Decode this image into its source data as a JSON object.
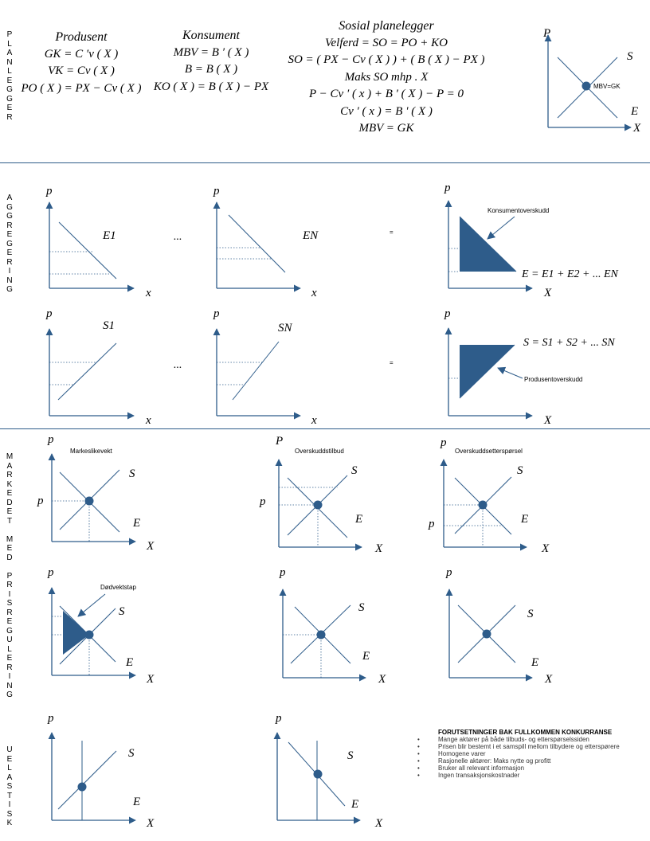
{
  "side_labels": {
    "planner": "P\nL\nA\nN\nL\nE\nG\nG\nE\nR",
    "aggregation": "A\nG\nG\nR\nE\nG\nE\nR\nI\nN\nG",
    "market_regulation": "M\nA\nR\nK\nE\nD\nE\nT\n\nM\nE\nD\n\nP\nR\nI\nS\nR\nE\nG\nU\nL\nE\nR\nI\nN\nG",
    "inelastic": "U\nE\nL\nA\nS\nT\nI\nS\nK"
  },
  "producer": {
    "title": "Produsent",
    "eq1": "GK = C ′v ( X )",
    "eq2": "VK = Cv ( X )",
    "eq3": "PO ( X ) = PX − Cv ( X )"
  },
  "consumer": {
    "title": "Konsument",
    "eq1": "MBV = B ′ ( X )",
    "eq2": "B = B ( X )",
    "eq3": "KO ( X ) = B ( X ) − PX"
  },
  "planner": {
    "title": "Sosial planelegger",
    "eq1": "Velferd = SO = PO + KO",
    "eq2": "SO = ( PX − Cv ( X ) ) + ( B ( X ) − PX )",
    "eq3": "Maks SO mhp . X",
    "eq4": "P − Cv ′ ( x ) + B ′ ( X ) − P = 0",
    "eq5": "Cv ′ ( x ) = B ′ ( X )",
    "eq6": "MBV = GK"
  },
  "planner_chart": {
    "y_axis": "P",
    "x_axis": "X",
    "supply": "S",
    "demand": "E",
    "point_label": "MBV=GK"
  },
  "aggregation": {
    "demand_1": {
      "y_axis": "p",
      "x_axis": "x",
      "curve": "E1"
    },
    "ellipsis": "...",
    "demand_n": {
      "y_axis": "p",
      "x_axis": "x",
      "curve": "EN"
    },
    "equals": "=",
    "demand_total": {
      "y_axis": "p",
      "x_axis": "X",
      "annotation": "Konsumentoverskudd",
      "formula": "E = E1 + E2 + ... EN"
    },
    "supply_1": {
      "y_axis": "p",
      "x_axis": "x",
      "curve": "S1"
    },
    "supply_n": {
      "y_axis": "p",
      "x_axis": "x",
      "curve": "SN"
    },
    "supply_total": {
      "y_axis": "p",
      "x_axis": "X",
      "annotation": "Produsentoverskudd",
      "formula": "S = S1 + S2 + ... SN"
    }
  },
  "market": {
    "equilibrium": {
      "y_axis": "p",
      "x_axis": "X",
      "title": "Markeslikevekt",
      "price_label": "p",
      "supply": "S",
      "demand": "E"
    },
    "excess_supply": {
      "y_axis": "P",
      "x_axis": "X",
      "title": "Overskuddstilbud",
      "price_label": "p",
      "supply": "S",
      "demand": "E"
    },
    "excess_demand": {
      "y_axis": "p",
      "x_axis": "X",
      "title": "Overskuddsetterspørsel",
      "price_label": "p",
      "supply": "S",
      "demand": "E"
    },
    "deadweight": {
      "y_axis": "p",
      "x_axis": "X",
      "annotation": "Dødvektstap",
      "supply": "S",
      "demand": "E"
    },
    "middle": {
      "y_axis": "p",
      "x_axis": "X",
      "supply": "S",
      "demand": "E"
    },
    "right": {
      "y_axis": "p",
      "x_axis": "X",
      "supply": "S",
      "demand": "E"
    },
    "inelastic_supply": {
      "y_axis": "p",
      "x_axis": "X",
      "supply": "S",
      "demand": "E"
    },
    "inelastic_demand": {
      "y_axis": "p",
      "x_axis": "X",
      "supply": "S",
      "demand": "E"
    }
  },
  "assumptions": {
    "title": "FORUTSETNINGER BAK FULLKOMMEN KONKURRANSE",
    "items": [
      "Mange aktører på både tilbuds- og etterspørselssiden",
      "Prisen blir bestemt i et samspill mellom tilbydere og etterspørere",
      "Homogene varer",
      "Rasjonelle aktører: Maks nytte og profitt",
      "Bruker all relevant informasjon",
      "Ingen transaksjonskostnader"
    ],
    "bullet": "•"
  },
  "colors": {
    "axis": "#2e5c8a",
    "curve": "#2e5c8a",
    "fill": "#2e5c8a",
    "point": "#2e5c8a"
  }
}
